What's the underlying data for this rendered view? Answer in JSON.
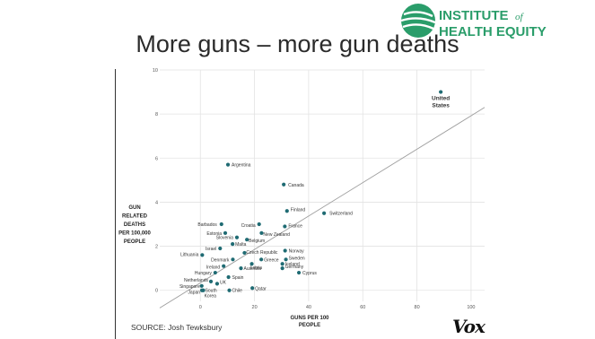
{
  "slide": {
    "title": "More guns – more gun deaths",
    "logo_line1": "INSTITUTE",
    "logo_of": "of",
    "logo_line2": "HEALTH EQUITY",
    "source": "SOURCE: Josh Tewksbury",
    "brand": "Vox",
    "logo_color": "#2a9d6a"
  },
  "chart_data": {
    "type": "scatter",
    "xlabel": "GUNS PER 100 PEOPLE",
    "ylabel": "GUN RELATED DEATHS PER 100,000 PEOPLE",
    "xlim": [
      -15,
      105
    ],
    "ylim": [
      -0.5,
      10
    ],
    "xticks": [
      0,
      20,
      40,
      60,
      80,
      100
    ],
    "yticks": [
      0,
      2,
      4,
      6,
      8,
      10
    ],
    "grid": true,
    "trendline": [
      [
        -15,
        -0.8
      ],
      [
        105,
        8.3
      ]
    ],
    "point_color": "#1f6b73",
    "points": [
      {
        "label": "United States",
        "x": 88.8,
        "y": 9.0
      },
      {
        "label": "Argentina",
        "x": 10.2,
        "y": 5.7
      },
      {
        "label": "Canada",
        "x": 30.8,
        "y": 4.8
      },
      {
        "label": "Switzerland",
        "x": 45.7,
        "y": 3.5
      },
      {
        "label": "Finland",
        "x": 32.0,
        "y": 3.6
      },
      {
        "label": "Croatia",
        "x": 21.7,
        "y": 3.0
      },
      {
        "label": "France",
        "x": 31.2,
        "y": 2.9
      },
      {
        "label": "Barbados",
        "x": 7.8,
        "y": 3.0
      },
      {
        "label": "Estonia",
        "x": 9.2,
        "y": 2.6
      },
      {
        "label": "New Zealand",
        "x": 22.6,
        "y": 2.6
      },
      {
        "label": "Slovenia",
        "x": 13.5,
        "y": 2.4
      },
      {
        "label": "Belgium",
        "x": 17.2,
        "y": 2.3
      },
      {
        "label": "Malta",
        "x": 11.9,
        "y": 2.1
      },
      {
        "label": "Israel",
        "x": 7.3,
        "y": 1.9
      },
      {
        "label": "Czech Republic",
        "x": 16.3,
        "y": 1.7
      },
      {
        "label": "Norway",
        "x": 31.3,
        "y": 1.8
      },
      {
        "label": "Lithuania",
        "x": 0.7,
        "y": 1.6
      },
      {
        "label": "Denmark",
        "x": 12.0,
        "y": 1.4
      },
      {
        "label": "Greece",
        "x": 22.5,
        "y": 1.4
      },
      {
        "label": "Sweden",
        "x": 31.6,
        "y": 1.4
      },
      {
        "label": "Latvia",
        "x": 19.0,
        "y": 1.2
      },
      {
        "label": "Iceland",
        "x": 30.3,
        "y": 1.2
      },
      {
        "label": "Ireland",
        "x": 8.6,
        "y": 1.1
      },
      {
        "label": "Australia",
        "x": 15.0,
        "y": 1.0
      },
      {
        "label": "Germany",
        "x": 30.3,
        "y": 1.0
      },
      {
        "label": "Hungary",
        "x": 5.5,
        "y": 0.8
      },
      {
        "label": "Cyprus",
        "x": 36.4,
        "y": 0.8
      },
      {
        "label": "Spain",
        "x": 10.4,
        "y": 0.6
      },
      {
        "label": "Netherlands",
        "x": 3.9,
        "y": 0.4
      },
      {
        "label": "UK",
        "x": 6.2,
        "y": 0.3
      },
      {
        "label": "Singapore",
        "x": 0.5,
        "y": 0.2
      },
      {
        "label": "Qatar",
        "x": 19.2,
        "y": 0.1
      },
      {
        "label": "South Korea",
        "x": 1.1,
        "y": 0.0
      },
      {
        "label": "Chile",
        "x": 10.7,
        "y": 0.0
      },
      {
        "label": "Japan",
        "x": 0.6,
        "y": 0.0
      }
    ]
  }
}
